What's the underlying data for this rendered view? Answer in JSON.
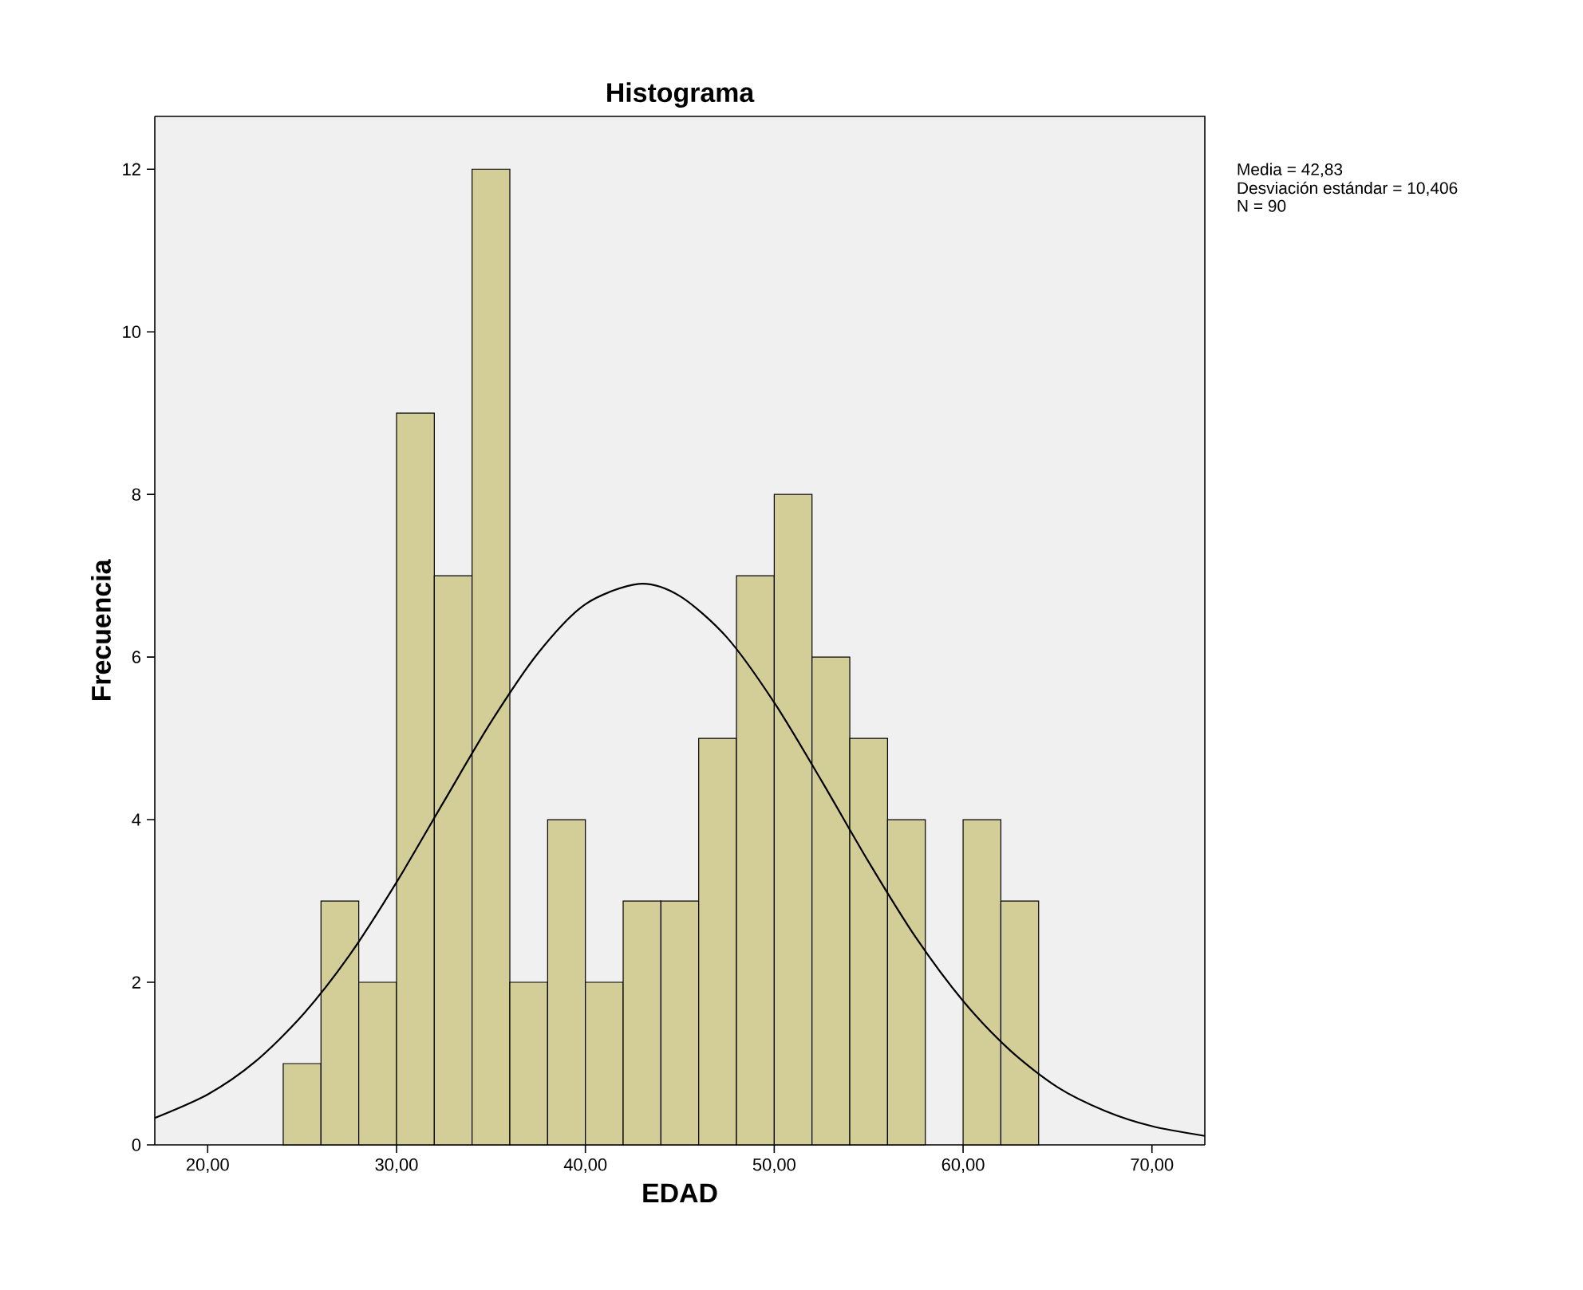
{
  "chart_data": {
    "type": "histogram",
    "title": "Histograma",
    "xlabel": "EDAD",
    "ylabel": "Frecuencia",
    "series": [
      {
        "color": "#d3ce97",
        "bins": [
          24,
          26,
          28,
          30,
          32,
          34,
          36,
          38,
          40,
          42,
          44,
          46,
          48,
          50,
          52,
          54,
          56,
          58,
          60,
          62,
          64
        ],
        "values": [
          1,
          3,
          2,
          9,
          7,
          12,
          2,
          4,
          2,
          3,
          3,
          5,
          7,
          8,
          6,
          5,
          4,
          0,
          4,
          3
        ]
      },
      {
        "type": "line",
        "color": "#000000",
        "x": [
          17.2,
          20,
          22.5,
          25,
          27.5,
          30,
          32.5,
          35,
          37.5,
          40,
          42.83,
          45,
          47.5,
          50,
          52.5,
          55,
          57.5,
          60,
          62.5,
          65,
          67.5,
          70,
          72.8
        ],
        "values": [
          0.33,
          0.62,
          1.02,
          1.59,
          2.33,
          3.23,
          4.22,
          5.2,
          6.05,
          6.65,
          6.9,
          6.75,
          6.24,
          5.44,
          4.48,
          3.48,
          2.55,
          1.77,
          1.16,
          0.71,
          0.42,
          0.23,
          0.11
        ]
      }
    ],
    "xlim": [
      17.2,
      72.8
    ],
    "ylim": [
      0,
      12.65
    ],
    "xticks": [
      {
        "value": 20,
        "label": "20,00"
      },
      {
        "value": 30,
        "label": "30,00"
      },
      {
        "value": 40,
        "label": "40,00"
      },
      {
        "value": 50,
        "label": "50,00"
      },
      {
        "value": 60,
        "label": "60,00"
      },
      {
        "value": 70,
        "label": "70,00"
      }
    ],
    "yticks": [
      0,
      2,
      4,
      6,
      8,
      10,
      12
    ],
    "annotations": [
      "Media = 42,83",
      "Desviación estándar = 10,406",
      "N = 90"
    ]
  }
}
